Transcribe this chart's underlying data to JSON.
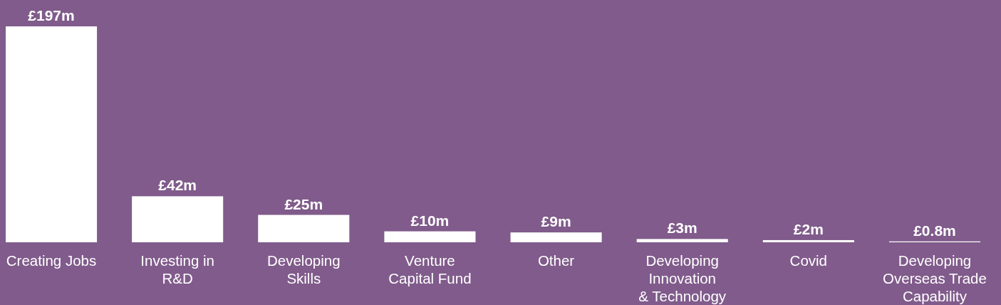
{
  "chart_data": {
    "type": "bar",
    "categories": [
      "Creating Jobs",
      "Investing in\nR&D",
      "Developing\nSkills",
      "Venture\nCapital Fund",
      "Other",
      "Developing\nInnovation\n& Technology",
      "Covid",
      "Developing\nOverseas Trade\nCapability"
    ],
    "values": [
      197,
      42,
      25,
      10,
      9,
      3,
      2,
      0.8
    ],
    "value_labels": [
      "£197m",
      "£42m",
      "£25m",
      "£10m",
      "£9m",
      "£3m",
      "£2m",
      "£0.8m"
    ],
    "color": "#ffffff"
  }
}
